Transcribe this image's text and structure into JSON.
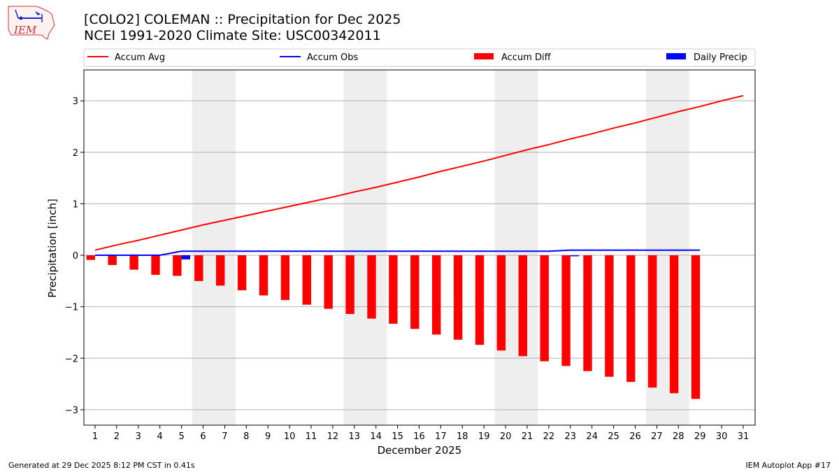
{
  "header": {
    "title_line1": "[COLO2] COLEMAN :: Precipitation for Dec 2025",
    "title_line2": "NCEI 1991-2020 Climate Site: USC00342011",
    "logo_text": "IEM"
  },
  "footer": {
    "left": "Generated at 29 Dec 2025 8:12 PM CST in 0.41s",
    "right": "IEM Autoplot App #17"
  },
  "chart_data": {
    "type": "bar",
    "xlabel": "December 2025",
    "ylabel": "Precipitation [inch]",
    "ylim": [
      -3.3,
      3.6
    ],
    "yticks": [
      -3,
      -2,
      -1,
      0,
      1,
      2,
      3
    ],
    "grid": "horizontal",
    "legend_placement": "top",
    "weekend_days": [
      6,
      7,
      13,
      14,
      20,
      21,
      27,
      28
    ],
    "days": [
      1,
      2,
      3,
      4,
      5,
      6,
      7,
      8,
      9,
      10,
      11,
      12,
      13,
      14,
      15,
      16,
      17,
      18,
      19,
      20,
      21,
      22,
      23,
      24,
      25,
      26,
      27,
      28,
      29,
      30,
      31
    ],
    "series": [
      {
        "name": "Accum Avg",
        "kind": "line",
        "color": "#ff0000",
        "values": [
          0.1,
          0.2,
          0.29,
          0.39,
          0.49,
          0.59,
          0.68,
          0.77,
          0.86,
          0.95,
          1.04,
          1.13,
          1.23,
          1.32,
          1.42,
          1.52,
          1.63,
          1.73,
          1.83,
          1.94,
          2.05,
          2.15,
          2.26,
          2.36,
          2.47,
          2.57,
          2.68,
          2.79,
          2.89,
          3.0,
          3.1
        ]
      },
      {
        "name": "Accum Obs",
        "kind": "line",
        "color": "#0000ff",
        "values": [
          0.0,
          0.0,
          0.0,
          0.0,
          0.08,
          0.08,
          0.08,
          0.08,
          0.08,
          0.08,
          0.08,
          0.08,
          0.08,
          0.08,
          0.08,
          0.08,
          0.08,
          0.08,
          0.08,
          0.08,
          0.08,
          0.08,
          0.1,
          0.1,
          0.1,
          0.1,
          0.1,
          0.1,
          0.1
        ]
      },
      {
        "name": "Accum Diff",
        "kind": "bar",
        "color": "#ff0000",
        "values": [
          -0.09,
          -0.19,
          -0.28,
          -0.38,
          -0.4,
          -0.5,
          -0.59,
          -0.68,
          -0.78,
          -0.87,
          -0.96,
          -1.04,
          -1.14,
          -1.23,
          -1.33,
          -1.43,
          -1.54,
          -1.64,
          -1.74,
          -1.85,
          -1.96,
          -2.06,
          -2.15,
          -2.25,
          -2.36,
          -2.46,
          -2.57,
          -2.68,
          -2.79
        ]
      },
      {
        "name": "Daily Precip",
        "kind": "bar",
        "color": "#0000ff",
        "values": [
          0,
          0,
          0,
          0,
          0.08,
          0,
          0,
          0,
          0,
          0,
          0,
          0,
          0,
          0,
          0,
          0,
          0,
          0,
          0,
          0,
          0,
          0,
          0.02,
          0,
          0,
          0,
          0,
          0,
          0
        ]
      }
    ]
  }
}
